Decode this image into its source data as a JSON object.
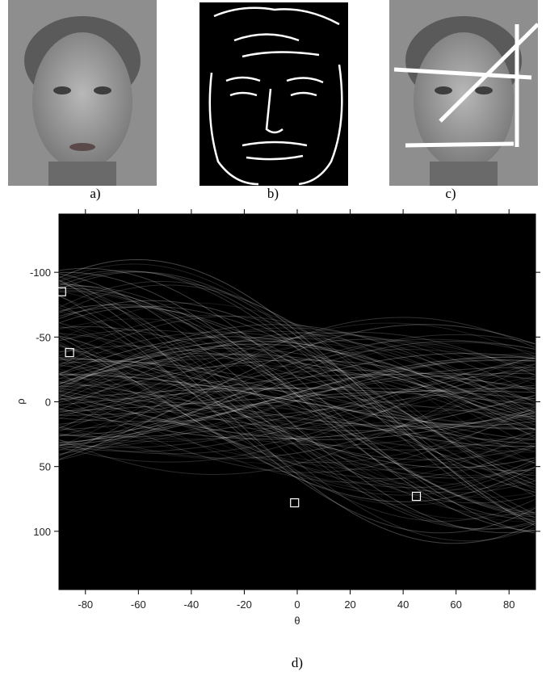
{
  "panels": [
    {
      "label": "a)"
    },
    {
      "label": "b)"
    },
    {
      "label": "c)"
    }
  ],
  "chart_data": {
    "type": "scatter",
    "caption": "d)",
    "x_label": "θ",
    "y_label": "ρ",
    "xlim": [
      -90,
      90
    ],
    "ylim": [
      -145,
      145
    ],
    "y_direction": "down",
    "xticks": [
      -80,
      -60,
      -40,
      -20,
      0,
      20,
      40,
      60,
      80
    ],
    "yticks": [
      -100,
      -50,
      0,
      50,
      100
    ],
    "background": "#000000",
    "peaks": {
      "color": "#ffffff",
      "x": [
        -89,
        -86,
        -1,
        45
      ],
      "y": [
        -85,
        -38,
        78,
        73
      ]
    }
  }
}
